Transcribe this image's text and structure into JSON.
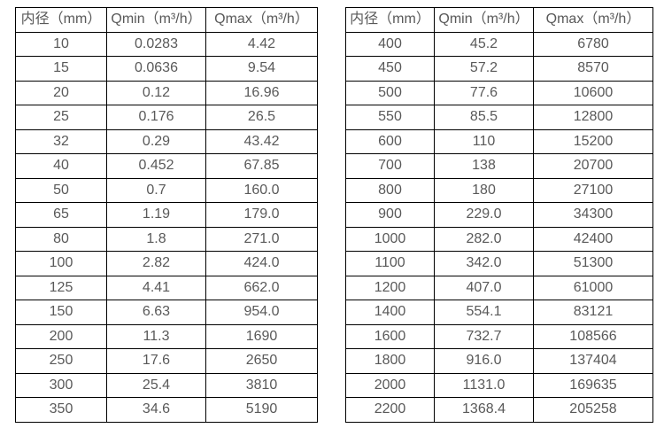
{
  "accent_colors": {
    "border": "#000000",
    "text": "#595959",
    "background": "#ffffff"
  },
  "chart_data": [
    {
      "type": "table",
      "columns": [
        "内径（mm）",
        "Qmin（m³/h）",
        "Qmax（m³/h）"
      ],
      "rows": [
        [
          "10",
          "0.0283",
          "4.42"
        ],
        [
          "15",
          "0.0636",
          "9.54"
        ],
        [
          "20",
          "0.12",
          "16.96"
        ],
        [
          "25",
          "0.176",
          "26.5"
        ],
        [
          "32",
          "0.29",
          "43.42"
        ],
        [
          "40",
          "0.452",
          "67.85"
        ],
        [
          "50",
          "0.7",
          "160.0"
        ],
        [
          "65",
          "1.19",
          "179.0"
        ],
        [
          "80",
          "1.8",
          "271.0"
        ],
        [
          "100",
          "2.82",
          "424.0"
        ],
        [
          "125",
          "4.41",
          "662.0"
        ],
        [
          "150",
          "6.63",
          "954.0"
        ],
        [
          "200",
          "11.3",
          "1690"
        ],
        [
          "250",
          "17.6",
          "2650"
        ],
        [
          "300",
          "25.4",
          "3810"
        ],
        [
          "350",
          "34.6",
          "5190"
        ]
      ]
    },
    {
      "type": "table",
      "columns": [
        "内径（mm）",
        "Qmin（m³/h）",
        "Qmax（m³/h）"
      ],
      "rows": [
        [
          "400",
          "45.2",
          "6780"
        ],
        [
          "450",
          "57.2",
          "8570"
        ],
        [
          "500",
          "77.6",
          "10600"
        ],
        [
          "550",
          "85.5",
          "12800"
        ],
        [
          "600",
          "110",
          "15200"
        ],
        [
          "700",
          "138",
          "20700"
        ],
        [
          "800",
          "180",
          "27100"
        ],
        [
          "900",
          "229.0",
          "34300"
        ],
        [
          "1000",
          "282.0",
          "42400"
        ],
        [
          "1100",
          "342.0",
          "51300"
        ],
        [
          "1200",
          "407.0",
          "61000"
        ],
        [
          "1400",
          "554.1",
          "83121"
        ],
        [
          "1600",
          "732.7",
          "108566"
        ],
        [
          "1800",
          "916.0",
          "137404"
        ],
        [
          "2000",
          "1131.0",
          "169635"
        ],
        [
          "2200",
          "1368.4",
          "205258"
        ]
      ]
    }
  ]
}
